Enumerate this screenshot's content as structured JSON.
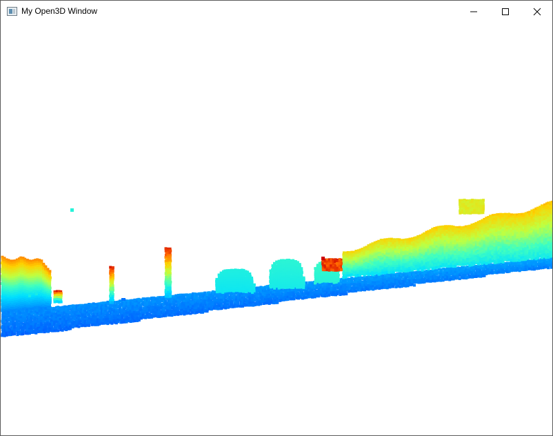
{
  "window": {
    "title": "My Open3D Window",
    "icon": "app-window-icon"
  },
  "controls": {
    "minimize_icon": "minimize-icon",
    "maximize_icon": "maximize-icon",
    "close_icon": "close-icon"
  },
  "viewport": {
    "background": "#ffffff",
    "content": "point-cloud",
    "colormap": "jet",
    "colors": [
      "#0000cc",
      "#0050ff",
      "#00a0ff",
      "#00e0ff",
      "#40ffc0",
      "#c0ff40",
      "#ffd000",
      "#ff6000",
      "#cc0000"
    ]
  }
}
